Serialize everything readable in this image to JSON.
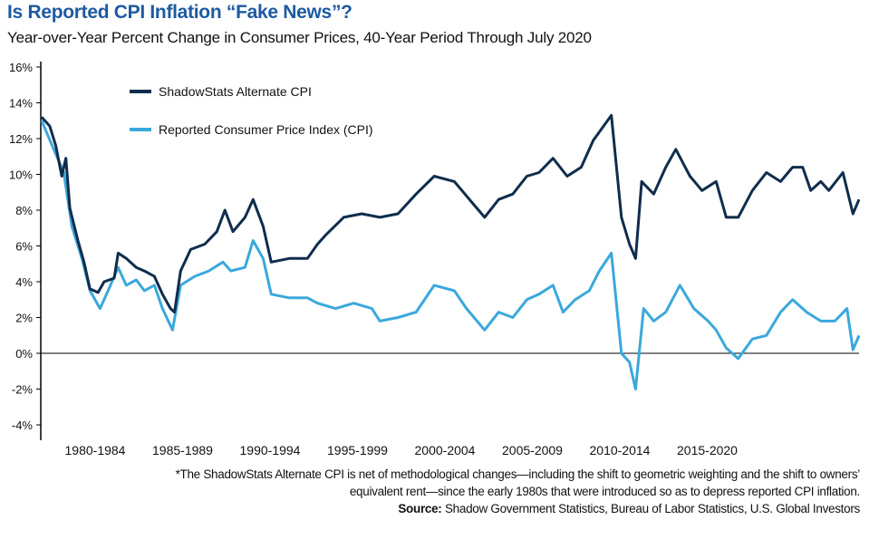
{
  "title": "Is Reported CPI Inflation “Fake News”?",
  "subtitle": "Year-over-Year Percent Change in Consumer Prices, 40-Year Period Through July 2020",
  "footnote_line1": "*The ShadowStats Alternate CPI is net of methodological changes—including the shift to geometric weighting and the shift to owners’",
  "footnote_line2": "equivalent rent—since the early 1980s that were introduced so as to depress reported CPI inflation.",
  "source_label": "Source:",
  "source_text": " Shadow Government Statistics, Bureau of Labor Statistics, U.S. Global Investors",
  "chart_data": {
    "type": "line",
    "title": "Is Reported CPI Inflation “Fake News”?",
    "ylim": [
      -4,
      16
    ],
    "xlim": [
      1980,
      2020.6
    ],
    "y_ticks": [
      "16%",
      "14%",
      "12%",
      "10%",
      "8%",
      "6%",
      "4%",
      "2%",
      "0%",
      "-2%",
      "-4%"
    ],
    "y_tick_values": [
      16,
      14,
      12,
      10,
      8,
      6,
      4,
      2,
      0,
      -2,
      -4
    ],
    "x_tick_labels": [
      "1980-1984",
      "1985-1989",
      "1990-1994",
      "1995-1999",
      "2000-2004",
      "2005-2009",
      "2010-2014",
      "2015-2020"
    ],
    "grid": false,
    "legend": "top-left",
    "series": [
      {
        "name": "ShadowStats Alternate CPI",
        "color": "#0f2d4d",
        "x": [
          1980.0,
          1980.4,
          1980.7,
          1981.0,
          1981.2,
          1981.4,
          1981.8,
          1982.1,
          1982.4,
          1982.8,
          1983.1,
          1983.6,
          1983.8,
          1984.2,
          1984.7,
          1985.1,
          1985.6,
          1986.0,
          1986.4,
          1986.6,
          1986.9,
          1987.4,
          1988.1,
          1988.7,
          1989.1,
          1989.5,
          1990.1,
          1990.5,
          1991.0,
          1991.4,
          1992.3,
          1993.2,
          1993.7,
          1994.1,
          1995.0,
          1995.9,
          1996.8,
          1997.7,
          1998.6,
          1999.5,
          2000.5,
          2001.4,
          2002.0,
          2002.7,
          2003.4,
          2004.1,
          2004.7,
          2005.4,
          2006.1,
          2006.8,
          2007.4,
          2008.3,
          2008.8,
          2009.2,
          2009.5,
          2009.8,
          2010.4,
          2011.0,
          2011.5,
          2012.2,
          2012.8,
          2013.5,
          2014.0,
          2014.6,
          2015.3,
          2016.0,
          2016.7,
          2017.3,
          2017.8,
          2018.2,
          2018.7,
          2019.1,
          2019.8,
          2020.3,
          2020.6
        ],
        "y": [
          13.2,
          12.7,
          11.6,
          9.9,
          10.9,
          8.1,
          6.3,
          5.1,
          3.6,
          3.4,
          4.0,
          4.2,
          5.6,
          5.3,
          4.8,
          4.6,
          4.3,
          3.3,
          2.5,
          2.3,
          4.6,
          5.8,
          6.1,
          6.8,
          8.0,
          6.8,
          7.6,
          8.6,
          7.1,
          5.1,
          5.3,
          5.3,
          6.1,
          6.6,
          7.6,
          7.8,
          7.6,
          7.8,
          8.9,
          9.9,
          9.6,
          8.4,
          7.6,
          8.6,
          8.9,
          9.9,
          10.1,
          10.9,
          9.9,
          10.4,
          11.9,
          13.3,
          7.6,
          6.1,
          5.3,
          9.6,
          8.9,
          10.4,
          11.4,
          9.9,
          9.1,
          9.6,
          7.6,
          7.6,
          9.1,
          10.1,
          9.6,
          10.4,
          10.4,
          9.1,
          9.6,
          9.1,
          10.1,
          7.8,
          8.6
        ]
      },
      {
        "name": "Reported Consumer Price Index (CPI)",
        "color": "#3aa8dc",
        "x": [
          1980.0,
          1980.6,
          1981.1,
          1981.5,
          1982.0,
          1982.4,
          1982.9,
          1983.3,
          1983.8,
          1984.2,
          1984.7,
          1985.1,
          1985.6,
          1986.0,
          1986.5,
          1986.9,
          1987.6,
          1988.3,
          1989.0,
          1989.4,
          1990.1,
          1990.5,
          1991.0,
          1991.4,
          1992.3,
          1993.2,
          1993.7,
          1994.6,
          1995.5,
          1996.4,
          1996.8,
          1997.7,
          1998.6,
          1999.5,
          2000.5,
          2001.1,
          2002.0,
          2002.7,
          2003.4,
          2004.1,
          2004.7,
          2005.4,
          2005.9,
          2006.5,
          2007.2,
          2007.7,
          2008.3,
          2008.8,
          2009.2,
          2009.5,
          2009.9,
          2010.4,
          2011.0,
          2011.7,
          2012.4,
          2013.1,
          2013.5,
          2014.0,
          2014.6,
          2015.3,
          2016.0,
          2016.7,
          2017.3,
          2018.0,
          2018.7,
          2019.4,
          2020.0,
          2020.3,
          2020.6
        ],
        "y": [
          13.0,
          11.4,
          10.1,
          7.1,
          5.3,
          3.5,
          2.5,
          3.5,
          4.8,
          3.8,
          4.1,
          3.5,
          3.8,
          2.5,
          1.3,
          3.8,
          4.3,
          4.6,
          5.1,
          4.6,
          4.8,
          6.3,
          5.3,
          3.3,
          3.1,
          3.1,
          2.8,
          2.5,
          2.8,
          2.5,
          1.8,
          2.0,
          2.3,
          3.8,
          3.5,
          2.5,
          1.3,
          2.3,
          2.0,
          3.0,
          3.3,
          3.8,
          2.3,
          3.0,
          3.5,
          4.6,
          5.6,
          0.0,
          -0.5,
          -2.0,
          2.5,
          1.8,
          2.3,
          3.8,
          2.5,
          1.8,
          1.3,
          0.3,
          -0.3,
          0.8,
          1.0,
          2.3,
          3.0,
          2.3,
          1.8,
          1.8,
          2.5,
          0.2,
          1.0
        ]
      }
    ]
  }
}
